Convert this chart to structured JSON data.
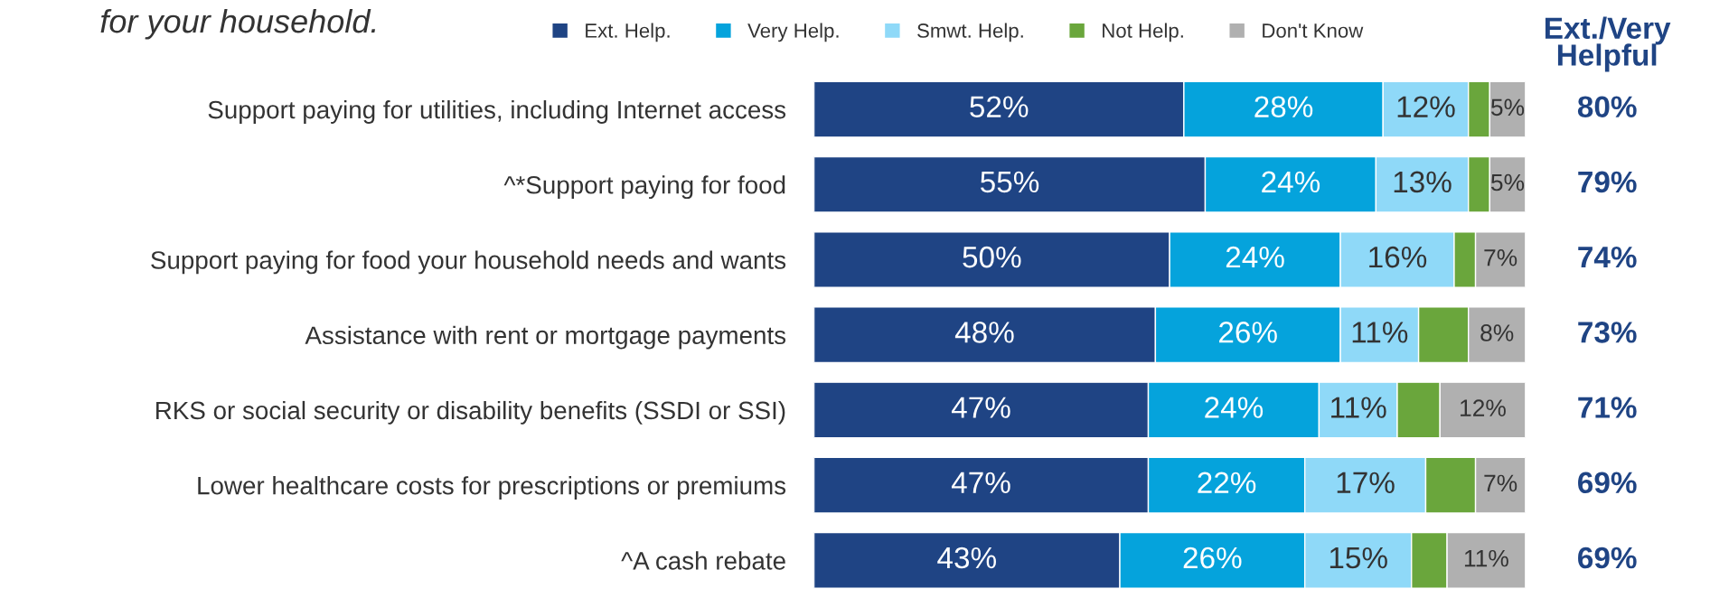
{
  "chart_data": {
    "type": "bar",
    "orientation": "horizontal",
    "stacked": true,
    "title": "for your household.",
    "categories": [
      "Support paying for utilities, including Internet access",
      "^*Support paying for food",
      "Support paying for food your household needs and wants",
      "Assistance with rent or mortgage payments",
      "RKS or social security or disability benefits (SSDI or SSI)",
      "Lower healthcare costs for prescriptions or premiums",
      "^A cash rebate"
    ],
    "series": [
      {
        "name": "Ext. Help.",
        "color": "#1f4484",
        "values": [
          52,
          55,
          50,
          48,
          47,
          47,
          43
        ],
        "value_labels": [
          "52%",
          "55%",
          "50%",
          "48%",
          "47%",
          "47%",
          "43%"
        ]
      },
      {
        "name": "Very Help.",
        "color": "#05a3dc",
        "values": [
          28,
          24,
          24,
          26,
          24,
          22,
          26
        ],
        "value_labels": [
          "28%",
          "24%",
          "24%",
          "26%",
          "24%",
          "22%",
          "26%"
        ]
      },
      {
        "name": "Smwt. Help.",
        "color": "#8fd9f8",
        "values": [
          12,
          13,
          16,
          11,
          11,
          17,
          15
        ],
        "value_labels": [
          "12%",
          "13%",
          "16%",
          "11%",
          "11%",
          "17%",
          "15%"
        ]
      },
      {
        "name": "Not Help.",
        "color": "#6aa63c",
        "values": [
          3,
          3,
          3,
          7,
          6,
          7,
          5
        ],
        "value_labels": [
          null,
          null,
          null,
          null,
          null,
          null,
          null
        ]
      },
      {
        "name": "Don't Know",
        "color": "#b0b0b0",
        "values": [
          5,
          5,
          7,
          8,
          12,
          7,
          11
        ],
        "value_labels": [
          "5%",
          "5%",
          "7%",
          "8%",
          "12%",
          "7%",
          "11%"
        ]
      }
    ],
    "xlim": [
      0,
      100
    ],
    "tick_labels": "y",
    "legend": "top",
    "grid": false,
    "annotations": [
      "Ext./Very\nHelpful",
      "80%",
      "79%",
      "74%",
      "73%",
      "71%",
      "69%",
      "69%"
    ]
  }
}
